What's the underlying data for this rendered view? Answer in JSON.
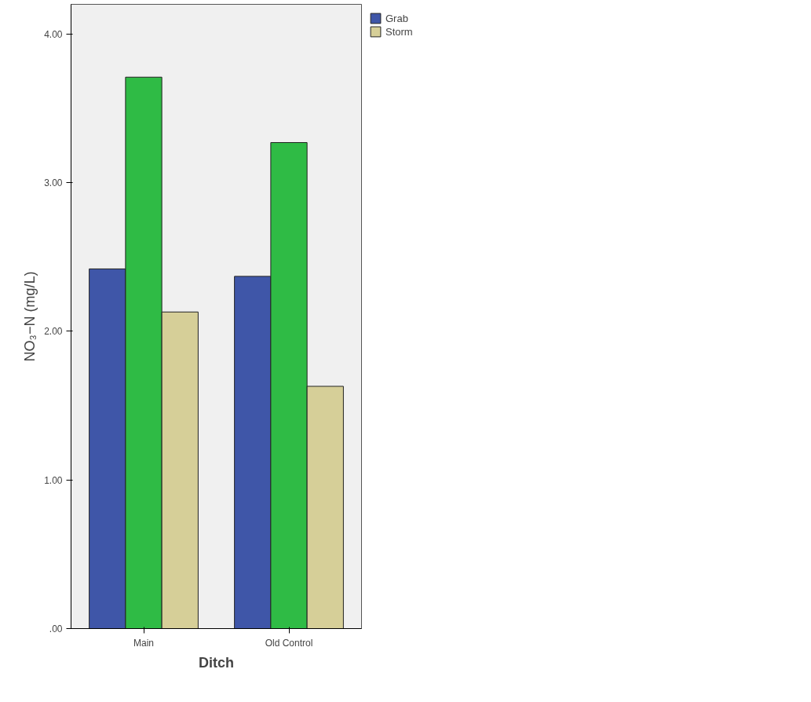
{
  "chart_data": {
    "type": "bar",
    "xlabel": "Ditch",
    "ylabel": "NO₃−N (mg/L)",
    "categories": [
      "Main",
      "Old Control"
    ],
    "series": [
      {
        "name": "Grab",
        "color": "#3f56a8",
        "values": [
          2.42,
          2.37
        ]
      },
      {
        "color": "#2fbb45",
        "values": [
          3.71,
          3.27
        ]
      },
      {
        "name": "Storm",
        "color": "#d6cf98",
        "values": [
          2.13,
          1.63
        ]
      }
    ],
    "ylim": [
      0,
      4.2
    ],
    "yticks": [
      {
        "value": 0,
        "label": ".00"
      },
      {
        "value": 1,
        "label": "1.00"
      },
      {
        "value": 2,
        "label": "2.00"
      },
      {
        "value": 3,
        "label": "3.00"
      },
      {
        "value": 4,
        "label": "4.00"
      }
    ],
    "legend": "top right"
  }
}
